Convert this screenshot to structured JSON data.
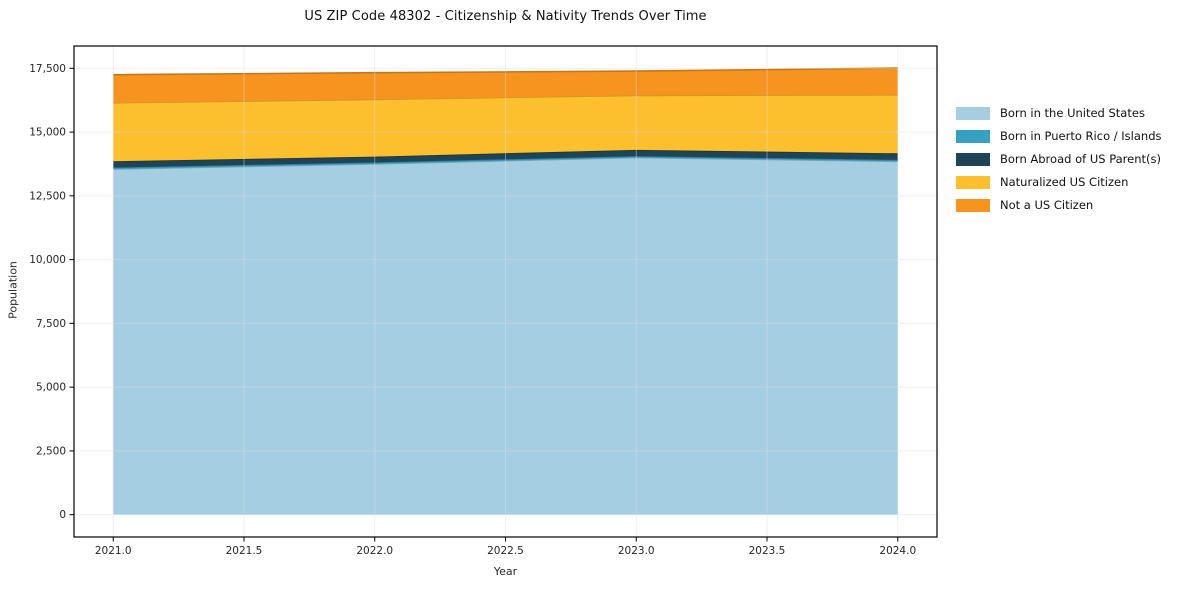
{
  "figure": {
    "background": "#ffffff",
    "frame_color": "#000000",
    "grid_color": "#dcdcdc",
    "text_color": "#262626"
  },
  "chart_data": {
    "type": "area",
    "stacked": true,
    "title": "US ZIP Code 48302 - Citizenship & Nativity Trends Over Time",
    "xlabel": "Year",
    "ylabel": "Population",
    "x": [
      2021,
      2022,
      2023,
      2024
    ],
    "series": [
      {
        "name": "Born in the United States",
        "color": "#a6cee3",
        "values": [
          13550,
          13750,
          14000,
          13850
        ]
      },
      {
        "name": "Born in Puerto Rico / Islands",
        "color": "#36a0c0",
        "values": [
          60,
          60,
          60,
          60
        ]
      },
      {
        "name": "Born Abroad of US Parent(s)",
        "color": "#1f4456",
        "values": [
          250,
          230,
          240,
          260
        ]
      },
      {
        "name": "Naturalized US Citizen",
        "color": "#fcbf2d",
        "values": [
          2290,
          2240,
          2140,
          2290
        ]
      },
      {
        "name": "Not a US Citizen",
        "color": "#f7941f",
        "values": [
          1100,
          1050,
          950,
          1050
        ]
      }
    ],
    "totals": [
      17250,
      17330,
      17390,
      17510
    ],
    "xticks": [
      2021.0,
      2021.5,
      2022.0,
      2022.5,
      2023.0,
      2023.5,
      2024.0
    ],
    "xtick_labels": [
      "2021.0",
      "2021.5",
      "2022.0",
      "2022.5",
      "2023.0",
      "2023.5",
      "2024.0"
    ],
    "yticks": [
      0,
      2500,
      5000,
      7500,
      10000,
      12500,
      15000,
      17500
    ],
    "ytick_labels": [
      "0",
      "2,500",
      "5,000",
      "7,500",
      "10,000",
      "12,500",
      "15,000",
      "17,500"
    ],
    "xlim": [
      2020.85,
      2024.15
    ],
    "ylim": [
      -875,
      18375
    ],
    "grid": true,
    "legend_position": "right-outside"
  }
}
